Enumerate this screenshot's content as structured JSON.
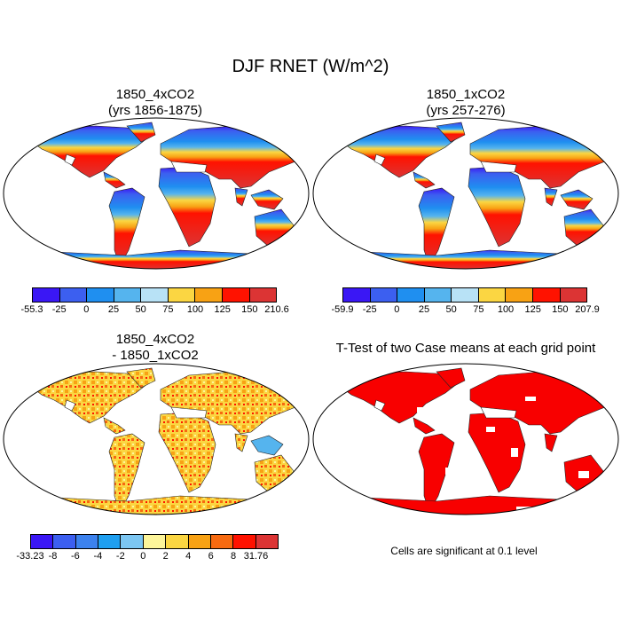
{
  "title": "DJF RNET (W/m^2)",
  "panels": [
    {
      "id": "p1",
      "title_line1": "1850_4xCO2",
      "title_line2": "(yrs 1856-1875)",
      "colorbar": {
        "colors": [
          "#3a17f5",
          "#3c5ff0",
          "#1f8ff0",
          "#55b4ee",
          "#b8e2f6",
          "#fbd642",
          "#f8a214",
          "#ff1200",
          "#dc3434"
        ],
        "labels": [
          "-55.3",
          "-25",
          "0",
          "25",
          "50",
          "75",
          "100",
          "125",
          "150",
          "210.6"
        ]
      }
    },
    {
      "id": "p2",
      "title_line1": "1850_1xCO2",
      "title_line2": "(yrs 257-276)",
      "colorbar": {
        "colors": [
          "#3a17f5",
          "#3c5ff0",
          "#1f8ff0",
          "#55b4ee",
          "#b8e2f6",
          "#fbd642",
          "#f8a214",
          "#ff1200",
          "#dc3434"
        ],
        "labels": [
          "-59.9",
          "-25",
          "0",
          "25",
          "50",
          "75",
          "100",
          "125",
          "150",
          "207.9"
        ]
      }
    },
    {
      "id": "p3",
      "title_line1": "1850_4xCO2",
      "title_line2": "- 1850_1xCO2",
      "colorbar": {
        "colors": [
          "#3a17f5",
          "#3c5ff0",
          "#3c82ee",
          "#1f9ff0",
          "#7cc6f2",
          "#fdf59a",
          "#fbd642",
          "#f8a214",
          "#f76a10",
          "#ff1200",
          "#dc3434"
        ],
        "labels": [
          "-33.23",
          "-8",
          "-6",
          "-4",
          "-2",
          "0",
          "2",
          "4",
          "6",
          "8",
          "31.76"
        ]
      }
    },
    {
      "id": "p4",
      "title_line1": "T-Test of two Case means at each grid point",
      "title_line2": "",
      "note": "Cells are significant at 0.1 level"
    }
  ]
}
